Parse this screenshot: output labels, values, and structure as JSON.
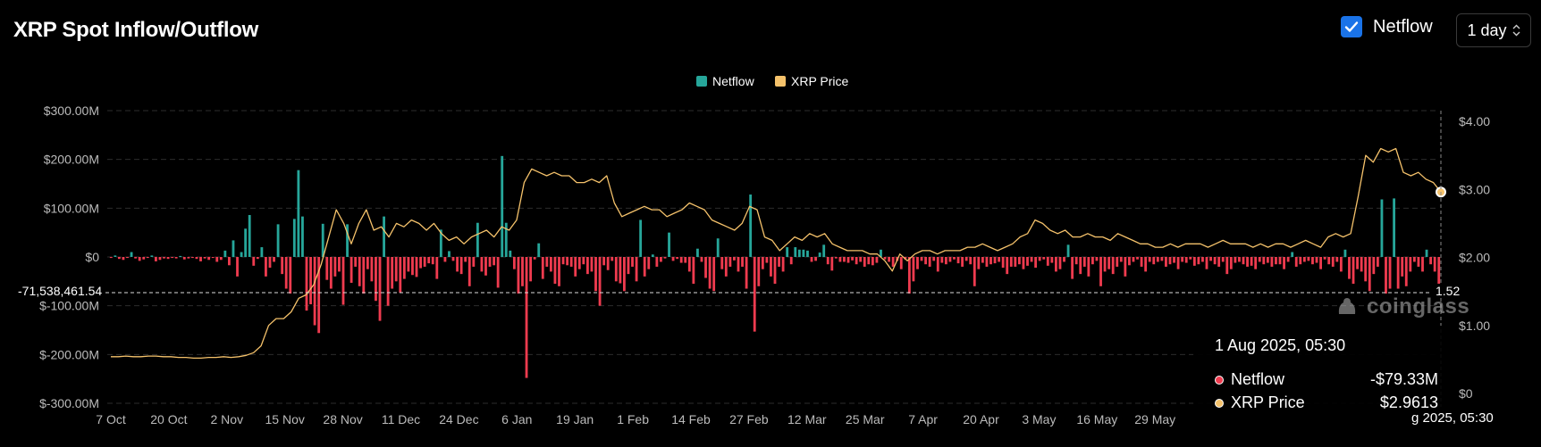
{
  "header": {
    "title": "XRP Spot Inflow/Outflow",
    "netflow_toggle_label": "Netflow",
    "netflow_checked": true,
    "interval_value": "1 day"
  },
  "colors": {
    "inflow": "#26a69a",
    "outflow": "#ef3b4f",
    "price": "#f5c26b",
    "checkbox": "#1a73e8"
  },
  "tooltip": {
    "date": "1 Aug 2025, 05:30",
    "rows": [
      {
        "label": "Netflow",
        "value": "-$79.33M",
        "dot_color": "#ef3b4f"
      },
      {
        "label": "XRP Price",
        "value": "$2.9613",
        "dot_color": "#f5c26b"
      }
    ]
  },
  "crosshair": {
    "x_label": "1 Aug 2025, 05:30",
    "x_label_visible": "g 2025, 05:30",
    "y_left_label": "-71,538,461.54",
    "y_right_label": "1.52"
  },
  "watermark": "coinglass",
  "chart_data": {
    "type": "bar",
    "title": "XRP Spot Inflow/Outflow",
    "legend": [
      {
        "name": "Netflow",
        "color": "#26a69a"
      },
      {
        "name": "XRP Price",
        "color": "#f5c26b"
      }
    ],
    "legend_position": "top-center",
    "x_tick_labels": [
      "7 Oct",
      "20 Oct",
      "2 Nov",
      "15 Nov",
      "28 Nov",
      "11 Dec",
      "24 Dec",
      "6 Jan",
      "19 Jan",
      "1 Feb",
      "14 Feb",
      "27 Feb",
      "12 Mar",
      "25 Mar",
      "7 Apr",
      "20 Apr",
      "3 May",
      "16 May",
      "29 May"
    ],
    "y_left": {
      "label": "Netflow",
      "ticks": [
        "$300.00M",
        "$200.00M",
        "$100.00M",
        "$0",
        "$-100.00M",
        "$-200.00M",
        "$-300.00M"
      ],
      "range": [
        -300,
        300
      ],
      "unit": "M USD"
    },
    "y_right": {
      "label": "XRP Price",
      "ticks": [
        "$4.00",
        "$3.00",
        "$2.00",
        "$1.00",
        "$0"
      ],
      "range": [
        0,
        4
      ]
    },
    "grid": true,
    "series": [
      {
        "name": "Netflow",
        "type": "bar",
        "x_start": "7 Oct",
        "unit": "M USD",
        "values": [
          -2,
          3,
          -4,
          -6,
          -2,
          10,
          -3,
          -8,
          -5,
          -2,
          3,
          -9,
          -6,
          -3,
          -4,
          -2,
          -3,
          2,
          -5,
          -3,
          -2,
          -4,
          -9,
          -3,
          -6,
          -2,
          -10,
          -6,
          13,
          -17,
          34,
          -40,
          10,
          58,
          86,
          -18,
          -4,
          20,
          -40,
          -22,
          -10,
          67,
          -35,
          -65,
          -75,
          78,
          178,
          83,
          -110,
          -97,
          -140,
          -156,
          68,
          -47,
          -65,
          -40,
          -30,
          -98,
          67,
          -53,
          -20,
          -60,
          -75,
          -25,
          -50,
          -90,
          -131,
          83,
          -100,
          -65,
          -50,
          -73,
          -45,
          -30,
          -37,
          -41,
          -23,
          -20,
          -13,
          -15,
          -45,
          56,
          -10,
          12,
          -8,
          -30,
          -35,
          -10,
          -60,
          -20,
          70,
          -30,
          -38,
          -20,
          -17,
          -63,
          207,
          70,
          13,
          -25,
          -75,
          -60,
          -248,
          -50,
          -5,
          28,
          -45,
          -20,
          -30,
          -55,
          -60,
          -15,
          -17,
          -20,
          -40,
          -25,
          -15,
          -35,
          -30,
          -70,
          -100,
          -17,
          -27,
          -8,
          -50,
          -54,
          -70,
          -35,
          -20,
          -50,
          76,
          -40,
          -25,
          5,
          -20,
          -10,
          -3,
          50,
          -8,
          -4,
          -12,
          -12,
          -30,
          -55,
          17,
          -10,
          -43,
          -65,
          -70,
          38,
          -25,
          -40,
          -20,
          -7,
          -30,
          -20,
          -65,
          128,
          -153,
          -60,
          -25,
          -12,
          -40,
          -55,
          -20,
          -30,
          20,
          -15,
          20,
          15,
          15,
          13,
          -10,
          -8,
          9,
          25,
          -15,
          -28,
          -3,
          -10,
          -10,
          -12,
          -7,
          -15,
          -10,
          -20,
          -15,
          -17,
          -12,
          15,
          -5,
          -10,
          -20,
          -8,
          -25,
          -5,
          -75,
          -50,
          -25,
          -8,
          -15,
          -20,
          -8,
          -30,
          -12,
          -15,
          -10,
          -5,
          -13,
          -20,
          -8,
          -15,
          -60,
          -25,
          -12,
          -20,
          -15,
          -13,
          -10,
          -22,
          -35,
          -20,
          -20,
          -15,
          -25,
          -18,
          -10,
          -22,
          -8,
          -5,
          -18,
          -12,
          -30,
          -25,
          -10,
          25,
          -45,
          -15,
          -35,
          -20,
          -40,
          -15,
          -8,
          -60,
          -30,
          -25,
          -35,
          -20,
          -10,
          -40,
          -17,
          -10,
          -5,
          -20,
          -30,
          -10,
          -15,
          -10,
          -8,
          -20,
          -15,
          -12,
          -25,
          -10,
          -12,
          -5,
          -18,
          -15,
          -10,
          -25,
          -8,
          -15,
          -20,
          -10,
          -35,
          -25,
          -12,
          -10,
          -15,
          -20,
          -18,
          -25,
          -10,
          -15,
          -12,
          -20,
          -15,
          -15,
          -25,
          -10,
          10,
          -20,
          -15,
          -10,
          -8,
          -15,
          -12,
          -25,
          -5,
          -15,
          -20,
          -10,
          -30,
          15,
          -45,
          -55,
          -25,
          -30,
          -50,
          -70,
          -35,
          -20,
          118,
          -75,
          -65,
          120,
          -65,
          -40,
          -60,
          -30,
          -10,
          -20,
          -30,
          15,
          -15,
          -30,
          -79
        ],
        "color_positive": "#26a69a",
        "color_negative": "#ef3b4f"
      },
      {
        "name": "XRP Price",
        "type": "line",
        "axis": "right",
        "color": "#f5c26b",
        "values": [
          0.54,
          0.54,
          0.55,
          0.54,
          0.54,
          0.55,
          0.55,
          0.54,
          0.54,
          0.53,
          0.53,
          0.52,
          0.52,
          0.53,
          0.53,
          0.54,
          0.53,
          0.54,
          0.56,
          0.6,
          0.7,
          1.0,
          1.1,
          1.1,
          1.2,
          1.4,
          1.45,
          1.6,
          1.9,
          2.3,
          2.7,
          2.5,
          2.2,
          2.5,
          2.7,
          2.4,
          2.45,
          2.3,
          2.5,
          2.45,
          2.55,
          2.5,
          2.4,
          2.5,
          2.35,
          2.25,
          2.3,
          2.2,
          2.3,
          2.35,
          2.4,
          2.3,
          2.45,
          2.4,
          2.55,
          3.1,
          3.3,
          3.25,
          3.2,
          3.25,
          3.2,
          3.2,
          3.1,
          3.1,
          3.15,
          3.1,
          3.2,
          2.8,
          2.6,
          2.65,
          2.7,
          2.75,
          2.7,
          2.7,
          2.6,
          2.65,
          2.7,
          2.8,
          2.75,
          2.7,
          2.55,
          2.5,
          2.45,
          2.4,
          2.5,
          2.75,
          2.7,
          2.3,
          2.25,
          2.1,
          2.2,
          2.3,
          2.25,
          2.35,
          2.3,
          2.35,
          2.2,
          2.15,
          2.1,
          2.1,
          2.1,
          2.05,
          2.05,
          1.95,
          1.8,
          2.05,
          1.95,
          2.05,
          2.1,
          2.1,
          2.05,
          2.1,
          2.1,
          2.1,
          2.15,
          2.15,
          2.2,
          2.15,
          2.1,
          2.15,
          2.2,
          2.3,
          2.35,
          2.55,
          2.5,
          2.4,
          2.35,
          2.4,
          2.3,
          2.3,
          2.35,
          2.3,
          2.3,
          2.25,
          2.35,
          2.3,
          2.25,
          2.2,
          2.2,
          2.15,
          2.15,
          2.2,
          2.15,
          2.2,
          2.2,
          2.2,
          2.15,
          2.2,
          2.25,
          2.2,
          2.2,
          2.2,
          2.15,
          2.2,
          2.15,
          2.2,
          2.2,
          2.15,
          2.2,
          2.25,
          2.2,
          2.15,
          2.3,
          2.35,
          2.3,
          2.35,
          2.9,
          3.5,
          3.4,
          3.6,
          3.55,
          3.6,
          3.25,
          3.2,
          3.25,
          3.15,
          3.1,
          2.96
        ]
      }
    ]
  }
}
